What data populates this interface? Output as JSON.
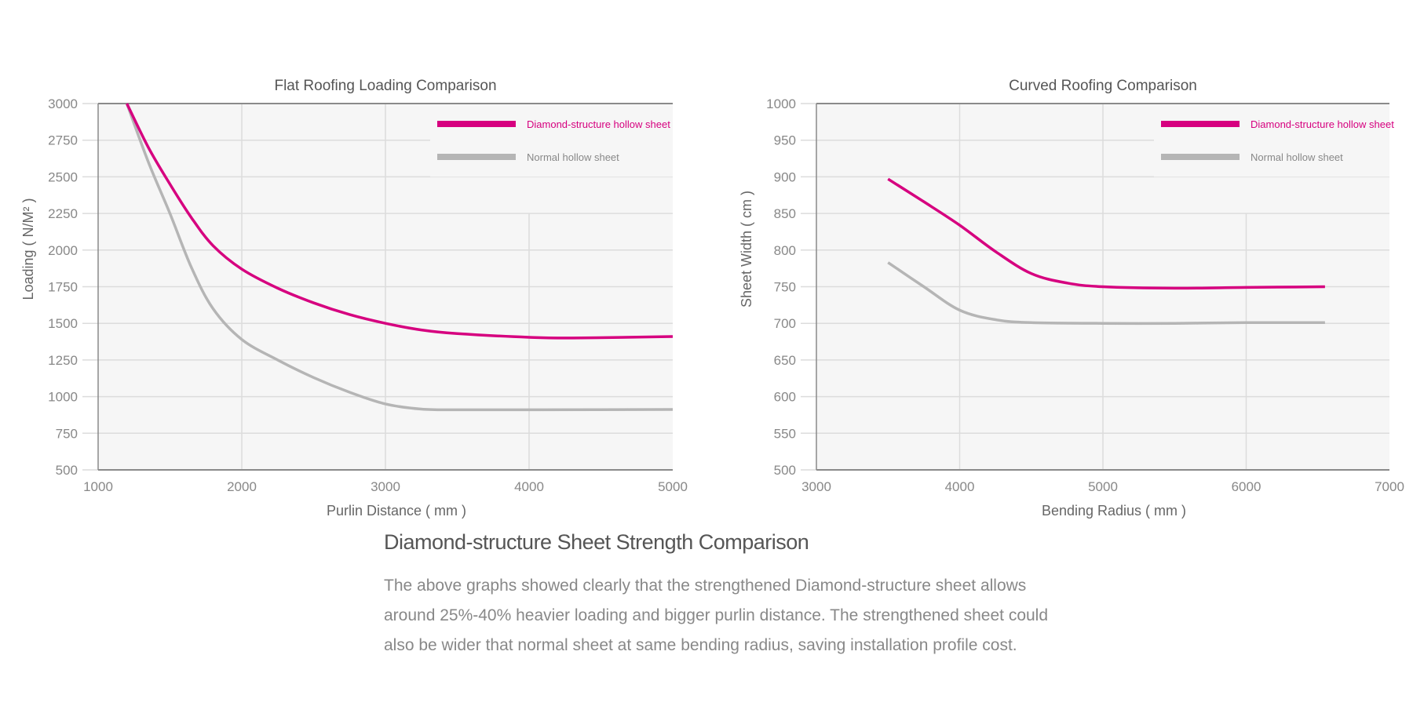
{
  "chart_data": [
    {
      "type": "line",
      "title": "Flat Roofing Loading Comparison",
      "xlabel": "Purlin Distance ( mm )",
      "ylabel": "Loading ( N/M² )",
      "xlim": [
        1000,
        5000
      ],
      "ylim": [
        500,
        3000
      ],
      "xticks": [
        1000,
        2000,
        3000,
        4000,
        5000
      ],
      "yticks": [
        500,
        750,
        1000,
        1250,
        1500,
        1750,
        2000,
        2250,
        2500,
        2750,
        3000
      ],
      "grid": true,
      "legend_position": "top-right",
      "series": [
        {
          "name": "Diamond-structure hollow sheet",
          "color": "#d6007f",
          "x": [
            1200,
            1350,
            1500,
            1650,
            1800,
            2000,
            2250,
            2500,
            2750,
            3000,
            3250,
            3500,
            4000,
            4300,
            5000
          ],
          "y": [
            3000,
            2700,
            2450,
            2220,
            2030,
            1870,
            1740,
            1640,
            1560,
            1500,
            1455,
            1430,
            1405,
            1400,
            1410
          ]
        },
        {
          "name": "Normal hollow sheet",
          "color": "#b5b5b5",
          "x": [
            1200,
            1350,
            1500,
            1650,
            1800,
            2000,
            2250,
            2500,
            2750,
            3000,
            3250,
            3500,
            4000,
            5000
          ],
          "y": [
            3000,
            2600,
            2250,
            1880,
            1600,
            1390,
            1250,
            1130,
            1030,
            950,
            915,
            910,
            910,
            912
          ]
        }
      ]
    },
    {
      "type": "line",
      "title": "Curved Roofing Comparison",
      "xlabel": "Bending Radius ( mm )",
      "ylabel": "Sheet Width ( cm )",
      "xlim": [
        3000,
        7000
      ],
      "ylim": [
        500,
        1000
      ],
      "xticks": [
        3000,
        4000,
        5000,
        6000,
        7000
      ],
      "yticks": [
        500,
        550,
        600,
        650,
        700,
        750,
        800,
        850,
        900,
        950,
        1000
      ],
      "grid": true,
      "legend_position": "top-right",
      "series": [
        {
          "name": "Diamond-structure hollow sheet",
          "color": "#d6007f",
          "x": [
            3500,
            3750,
            4000,
            4250,
            4500,
            4750,
            5000,
            5500,
            6000,
            6550
          ],
          "y": [
            897,
            866,
            834,
            798,
            768,
            755,
            750,
            748,
            749,
            750
          ]
        },
        {
          "name": "Normal hollow sheet",
          "color": "#b5b5b5",
          "x": [
            3500,
            3750,
            4000,
            4250,
            4500,
            5000,
            5500,
            6000,
            6550
          ],
          "y": [
            783,
            750,
            718,
            705,
            701,
            700,
            700,
            701,
            701
          ]
        }
      ]
    }
  ],
  "text": {
    "heading": "Diamond-structure Sheet Strength Comparison",
    "paragraph_lines": [
      "The above graphs showed clearly that the strengthened Diamond-structure sheet allows",
      "around 25%-40% heavier loading and bigger purlin distance. The strengthened sheet could",
      "also be wider that normal sheet at same bending radius, saving installation profile cost."
    ]
  }
}
